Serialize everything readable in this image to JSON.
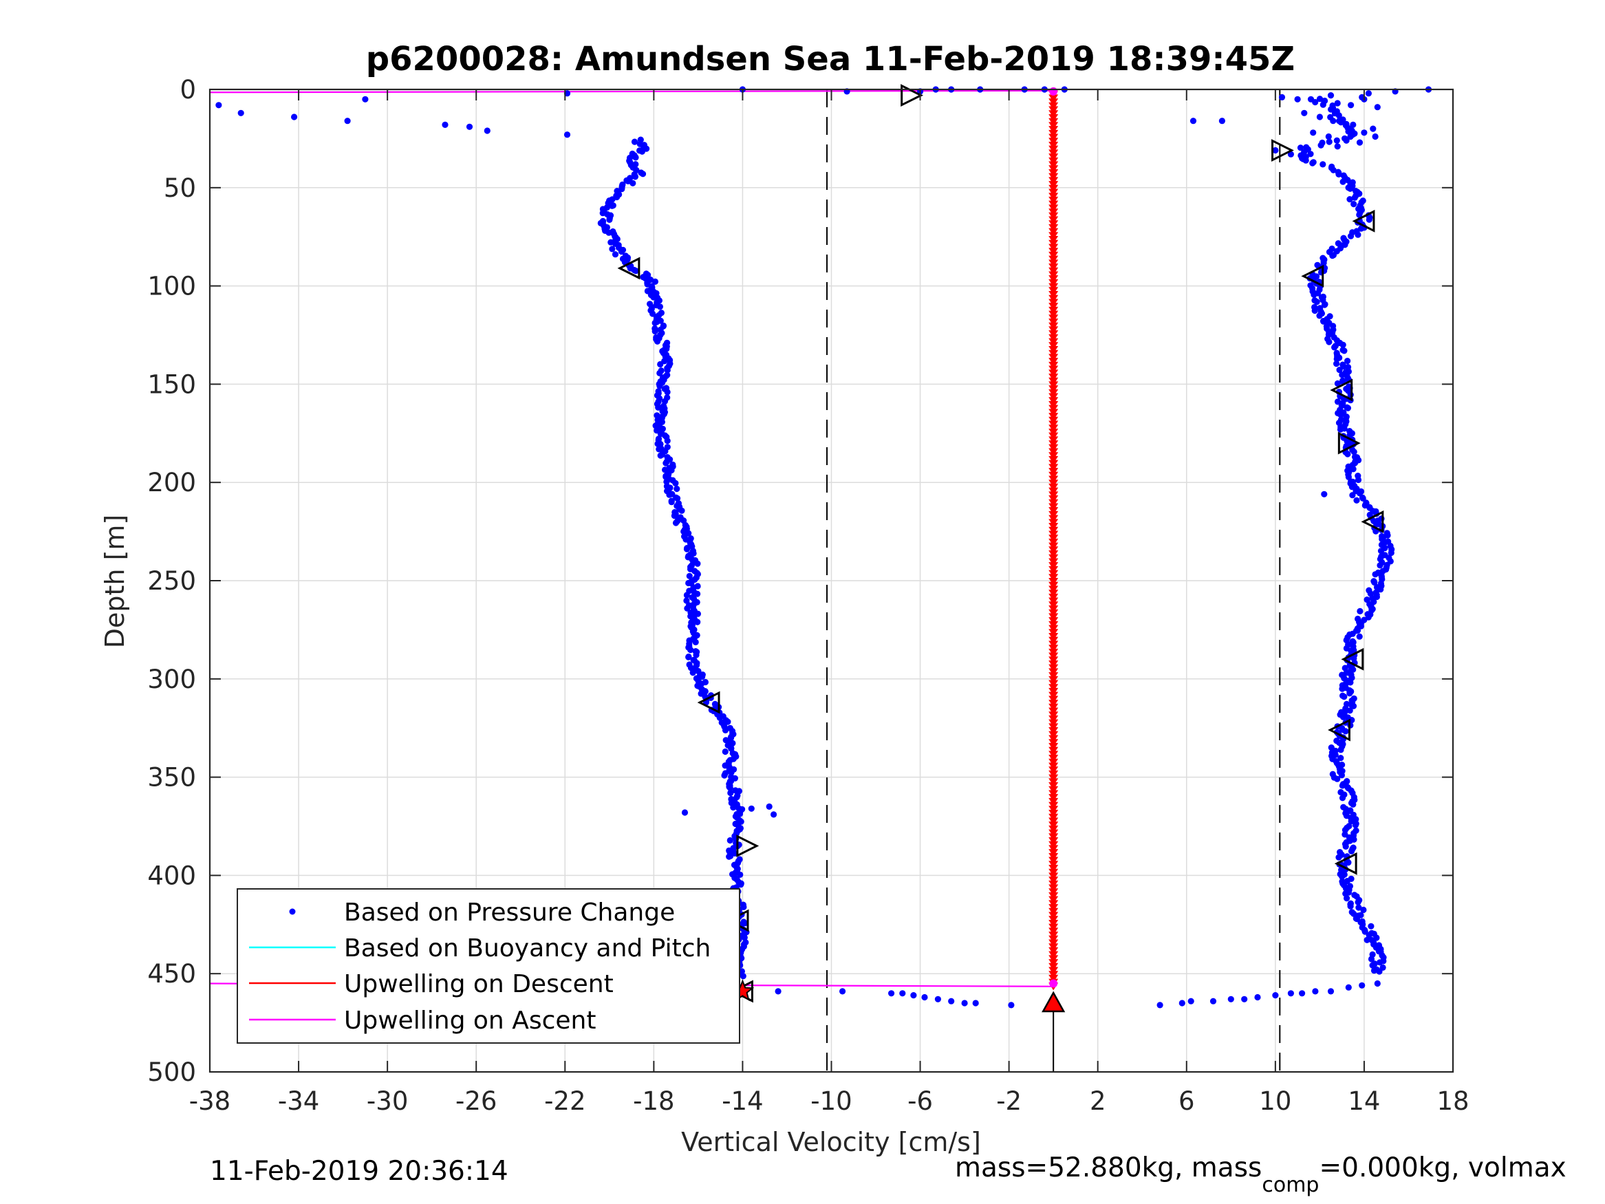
{
  "chart_data": {
    "type": "scatter",
    "title": "p6200028: Amundsen Sea 11-Feb-2019 18:39:45Z",
    "xlabel": "Vertical Velocity [cm/s]",
    "ylabel": "Depth [m]",
    "xlim": [
      -38,
      18
    ],
    "ylim": [
      0,
      500
    ],
    "y_reversed": true,
    "grid": true,
    "xticks": [
      -38,
      -34,
      -30,
      -26,
      -22,
      -18,
      -14,
      -10,
      -6,
      -2,
      2,
      6,
      10,
      14,
      18
    ],
    "xtick_labels": [
      "-38",
      "-34",
      "-30",
      "-26",
      "-22",
      "-18",
      "-14",
      "-10",
      "-6",
      "-2",
      "2",
      "6",
      "10",
      "14",
      "18"
    ],
    "yticks": [
      0,
      50,
      100,
      150,
      200,
      250,
      300,
      350,
      400,
      450,
      500
    ],
    "ytick_labels": [
      "0",
      "50",
      "100",
      "150",
      "200",
      "250",
      "300",
      "350",
      "400",
      "450",
      "500"
    ],
    "legend_position": "bottom-left",
    "legend": [
      {
        "label": "Based on Pressure Change",
        "color": "#0000ff",
        "marker": "dot"
      },
      {
        "label": "Based on Buoyancy and Pitch",
        "color": "#00ffff",
        "marker": "line"
      },
      {
        "label": "Upwelling on Descent",
        "color": "#ff0000",
        "marker": "line"
      },
      {
        "label": "Upwelling on Ascent",
        "color": "#ff00ff",
        "marker": "line"
      }
    ],
    "series": [
      {
        "label_ref": 0,
        "role": "descent",
        "color": "#0000ff",
        "depth_profile": [
          [
            26,
            -18.8
          ],
          [
            30,
            -18.4
          ],
          [
            36,
            -19.2
          ],
          [
            42,
            -18.6
          ],
          [
            50,
            -19.4
          ],
          [
            58,
            -20.0
          ],
          [
            66,
            -20.2
          ],
          [
            74,
            -20.0
          ],
          [
            82,
            -19.6
          ],
          [
            90,
            -19.1
          ],
          [
            96,
            -18.2
          ],
          [
            104,
            -18.0
          ],
          [
            112,
            -17.9
          ],
          [
            120,
            -17.8
          ],
          [
            130,
            -17.6
          ],
          [
            140,
            -17.5
          ],
          [
            150,
            -17.6
          ],
          [
            160,
            -17.6
          ],
          [
            170,
            -17.7
          ],
          [
            180,
            -17.6
          ],
          [
            190,
            -17.4
          ],
          [
            200,
            -17.2
          ],
          [
            210,
            -17.1
          ],
          [
            220,
            -16.8
          ],
          [
            230,
            -16.4
          ],
          [
            240,
            -16.2
          ],
          [
            250,
            -16.2
          ],
          [
            260,
            -16.3
          ],
          [
            270,
            -16.2
          ],
          [
            280,
            -16.3
          ],
          [
            290,
            -16.2
          ],
          [
            300,
            -16.0
          ],
          [
            310,
            -15.5
          ],
          [
            320,
            -14.9
          ],
          [
            330,
            -14.6
          ],
          [
            340,
            -14.5
          ],
          [
            350,
            -14.6
          ],
          [
            360,
            -14.3
          ],
          [
            370,
            -14.2
          ],
          [
            380,
            -14.3
          ],
          [
            390,
            -14.4
          ],
          [
            400,
            -14.2
          ],
          [
            410,
            -14.3
          ],
          [
            420,
            -14.1
          ],
          [
            430,
            -14.0
          ],
          [
            440,
            -14.2
          ],
          [
            448,
            -14.3
          ],
          [
            455,
            -14.1
          ]
        ],
        "extra_points": [
          [
            -37.6,
            8
          ],
          [
            -36.6,
            12
          ],
          [
            -34.2,
            14
          ],
          [
            -31.8,
            16
          ],
          [
            -31.0,
            5
          ],
          [
            -27.4,
            18
          ],
          [
            -26.3,
            19
          ],
          [
            -25.5,
            21
          ],
          [
            -21.9,
            23
          ],
          [
            -21.9,
            2
          ],
          [
            -14.0,
            0
          ],
          [
            -9.3,
            1
          ],
          [
            -6.0,
            1
          ],
          [
            -5.3,
            0
          ],
          [
            -4.6,
            0
          ],
          [
            -3.3,
            0
          ],
          [
            -1.3,
            0
          ],
          [
            -0.4,
            0
          ],
          [
            0.5,
            0
          ],
          [
            -16.6,
            368
          ],
          [
            -13.6,
            366
          ],
          [
            -12.8,
            365
          ],
          [
            -12.6,
            369
          ],
          [
            -12.4,
            459
          ],
          [
            -9.5,
            459
          ],
          [
            -7.3,
            460
          ],
          [
            -6.8,
            460
          ],
          [
            -6.3,
            461
          ],
          [
            -5.8,
            462
          ],
          [
            -5.2,
            463
          ],
          [
            -4.6,
            464
          ],
          [
            -4.0,
            465
          ],
          [
            -3.5,
            465
          ],
          [
            -1.9,
            466
          ]
        ],
        "spread": 0.25
      },
      {
        "label_ref": 0,
        "role": "ascent",
        "color": "#0000ff",
        "depth_profile": [
          [
            5,
            11.8
          ],
          [
            10,
            12.6
          ],
          [
            15,
            12.8
          ],
          [
            20,
            13.2
          ],
          [
            25,
            13.4
          ],
          [
            30,
            11.2
          ],
          [
            35,
            11.4
          ],
          [
            40,
            12.5
          ],
          [
            45,
            13.2
          ],
          [
            50,
            13.4
          ],
          [
            55,
            13.6
          ],
          [
            60,
            13.9
          ],
          [
            66,
            14.0
          ],
          [
            72,
            13.6
          ],
          [
            78,
            13.0
          ],
          [
            84,
            12.6
          ],
          [
            90,
            12.0
          ],
          [
            96,
            11.8
          ],
          [
            102,
            11.8
          ],
          [
            110,
            12.0
          ],
          [
            120,
            12.3
          ],
          [
            130,
            12.8
          ],
          [
            140,
            13.0
          ],
          [
            150,
            13.1
          ],
          [
            160,
            13.1
          ],
          [
            170,
            13.1
          ],
          [
            180,
            13.3
          ],
          [
            190,
            13.5
          ],
          [
            200,
            13.5
          ],
          [
            210,
            13.9
          ],
          [
            220,
            14.6
          ],
          [
            230,
            15.0
          ],
          [
            240,
            14.9
          ],
          [
            250,
            14.6
          ],
          [
            260,
            14.3
          ],
          [
            270,
            13.9
          ],
          [
            280,
            13.5
          ],
          [
            290,
            13.3
          ],
          [
            300,
            13.2
          ],
          [
            310,
            13.3
          ],
          [
            320,
            13.2
          ],
          [
            330,
            12.9
          ],
          [
            340,
            12.7
          ],
          [
            350,
            12.9
          ],
          [
            360,
            13.3
          ],
          [
            370,
            13.4
          ],
          [
            380,
            13.4
          ],
          [
            390,
            13.1
          ],
          [
            400,
            13.2
          ],
          [
            410,
            13.4
          ],
          [
            420,
            13.8
          ],
          [
            430,
            14.3
          ],
          [
            440,
            14.6
          ],
          [
            450,
            14.6
          ]
        ],
        "extra_points": [
          [
            4.8,
            466
          ],
          [
            5.8,
            465
          ],
          [
            6.2,
            464
          ],
          [
            7.2,
            464
          ],
          [
            8.0,
            463
          ],
          [
            8.6,
            463
          ],
          [
            9.2,
            462
          ],
          [
            10.0,
            461
          ],
          [
            10.7,
            460
          ],
          [
            11.2,
            460
          ],
          [
            11.8,
            459
          ],
          [
            12.5,
            459
          ],
          [
            13.3,
            457
          ],
          [
            13.9,
            456
          ],
          [
            14.6,
            455
          ],
          [
            6.3,
            16
          ],
          [
            7.6,
            16
          ],
          [
            10.0,
            31
          ],
          [
            10.7,
            33
          ],
          [
            11.2,
            35
          ],
          [
            10.3,
            4
          ],
          [
            11.0,
            5
          ],
          [
            11.6,
            5
          ],
          [
            12.2,
            6
          ],
          [
            12.8,
            7
          ],
          [
            13.4,
            8
          ],
          [
            14.0,
            5
          ],
          [
            14.6,
            9
          ],
          [
            15.4,
            1
          ],
          [
            16.9,
            0
          ],
          [
            14.2,
            2
          ],
          [
            13.9,
            4
          ],
          [
            12.5,
            3
          ],
          [
            11.3,
            12
          ],
          [
            12.0,
            14
          ],
          [
            12.6,
            16
          ],
          [
            13.5,
            18
          ],
          [
            14.4,
            20
          ],
          [
            11.7,
            22
          ],
          [
            12.4,
            24
          ],
          [
            13.2,
            26
          ],
          [
            14.0,
            22
          ],
          [
            14.5,
            24
          ],
          [
            13.8,
            27
          ],
          [
            12.8,
            29
          ],
          [
            12.2,
            206
          ]
        ],
        "spread": 0.3
      },
      {
        "label_ref": 2,
        "role": "upwelling-descent",
        "color": "#ff0000",
        "x": 0.0,
        "depth_range": [
          2,
          456
        ],
        "marker_step": 2
      },
      {
        "label_ref": 3,
        "role": "upwelling-ascent-lines",
        "color": "#ff00ff",
        "segments": [
          [
            [
              -38,
              1.5
            ],
            [
              0.0,
              0.6
            ]
          ],
          [
            [
              -38,
              455
            ],
            [
              0.0,
              456.5
            ]
          ]
        ]
      }
    ],
    "reference_lines": [
      {
        "x": -10.2,
        "style": "dashed",
        "color": "#000000"
      },
      {
        "x": 10.2,
        "style": "dashed",
        "color": "#000000"
      }
    ],
    "vertical_marker_line": {
      "x": 0.0,
      "from_depth": 466,
      "to_depth": 500,
      "color": "#000000"
    },
    "triangle_markers": [
      {
        "x": -6.4,
        "y": 3,
        "dir": "right"
      },
      {
        "x": -19.1,
        "y": 91,
        "dir": "left"
      },
      {
        "x": -15.5,
        "y": 312,
        "dir": "left"
      },
      {
        "x": -13.8,
        "y": 385,
        "dir": "right"
      },
      {
        "x": -14.2,
        "y": 423,
        "dir": "left"
      },
      {
        "x": -14.0,
        "y": 459,
        "dir": "left"
      },
      {
        "x": 10.3,
        "y": 31,
        "dir": "right"
      },
      {
        "x": 14.0,
        "y": 67,
        "dir": "left"
      },
      {
        "x": 11.7,
        "y": 95,
        "dir": "left"
      },
      {
        "x": 13.0,
        "y": 153,
        "dir": "left"
      },
      {
        "x": 13.3,
        "y": 180,
        "dir": "right"
      },
      {
        "x": 14.4,
        "y": 220,
        "dir": "left"
      },
      {
        "x": 13.5,
        "y": 290,
        "dir": "left"
      },
      {
        "x": 12.9,
        "y": 326,
        "dir": "left"
      },
      {
        "x": 13.2,
        "y": 394,
        "dir": "left"
      }
    ],
    "red_end_markers": [
      {
        "x": -14.0,
        "y": 459,
        "shape": "star"
      },
      {
        "x": 0.0,
        "y": 465,
        "shape": "triangle-up"
      }
    ]
  },
  "footer": {
    "timestamp": "11-Feb-2019 20:36:14",
    "mass_text": "mass=52.880kg, mass",
    "mass_sub": "comp",
    "mass_tail": "=0.000kg, volmax"
  }
}
